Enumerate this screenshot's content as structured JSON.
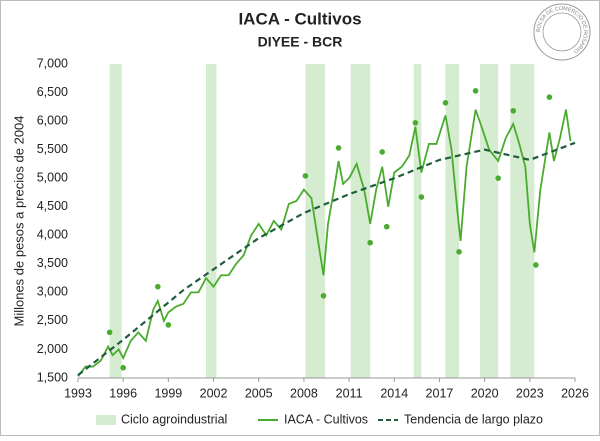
{
  "chart_data": {
    "type": "line",
    "title": "IACA - Cultivos",
    "subtitle": "DIYEE - BCR",
    "logo_text": "BOLSA DE COMERCIO DE ROSARIO",
    "y_label": "Millones de pesos a precios de 2004",
    "xlim": [
      1993,
      2026
    ],
    "xticks": [
      1993,
      1996,
      1999,
      2002,
      2005,
      2008,
      2011,
      2014,
      2017,
      2020,
      2023,
      2026
    ],
    "ylim": [
      1500,
      7000
    ],
    "yticks": [
      {
        "value": 1500,
        "label": "1,500"
      },
      {
        "value": 2000,
        "label": "2,000"
      },
      {
        "value": 2500,
        "label": "2,500"
      },
      {
        "value": 3000,
        "label": "3,000"
      },
      {
        "value": 3500,
        "label": "3,500"
      },
      {
        "value": 4000,
        "label": "4,000"
      },
      {
        "value": 4500,
        "label": "4,500"
      },
      {
        "value": 5000,
        "label": "5,000"
      },
      {
        "value": 5500,
        "label": "5,500"
      },
      {
        "value": 6000,
        "label": "6,000"
      },
      {
        "value": 6500,
        "label": "6,500"
      },
      {
        "value": 7000,
        "label": "7,000"
      }
    ],
    "bands": {
      "name": "Ciclo agroindustrial",
      "color": "#d5ecd0",
      "ranges": [
        [
          1995.1,
          1995.9
        ],
        [
          2001.5,
          2002.2
        ],
        [
          2008.1,
          2009.4
        ],
        [
          2011.1,
          2012.4
        ],
        [
          2015.3,
          2015.8
        ],
        [
          2017.4,
          2018.3
        ],
        [
          2019.7,
          2020.9
        ],
        [
          2021.7,
          2023.3
        ]
      ]
    },
    "series": [
      {
        "name": "IACA - Cultivos",
        "color": "#4aac2f",
        "style": "solid",
        "x": [
          1993.0,
          1993.5,
          1994.0,
          1994.5,
          1995.0,
          1995.3,
          1995.7,
          1996.0,
          1996.5,
          1997.0,
          1997.5,
          1998.0,
          1998.3,
          1998.7,
          1999.0,
          1999.5,
          2000.0,
          2000.5,
          2001.0,
          2001.5,
          2002.0,
          2002.5,
          2003.0,
          2003.5,
          2004.0,
          2004.5,
          2005.0,
          2005.5,
          2006.0,
          2006.5,
          2007.0,
          2007.5,
          2008.0,
          2008.5,
          2009.0,
          2009.3,
          2009.6,
          2010.0,
          2010.3,
          2010.6,
          2011.0,
          2011.5,
          2012.0,
          2012.4,
          2012.8,
          2013.2,
          2013.6,
          2014.0,
          2014.5,
          2015.0,
          2015.4,
          2015.8,
          2016.3,
          2016.8,
          2017.4,
          2017.8,
          2018.2,
          2018.4,
          2018.8,
          2019.4,
          2019.8,
          2020.3,
          2020.9,
          2021.4,
          2021.9,
          2022.3,
          2022.7,
          2023.0,
          2023.3,
          2023.7,
          2024.3,
          2024.6,
          2025.0,
          2025.4,
          2025.7
        ],
        "values": [
          1530,
          1700,
          1700,
          1800,
          2050,
          1900,
          2000,
          1850,
          2150,
          2300,
          2150,
          2700,
          2850,
          2500,
          2650,
          2750,
          2800,
          3000,
          3000,
          3250,
          3100,
          3300,
          3300,
          3500,
          3650,
          4000,
          4200,
          4000,
          4250,
          4100,
          4550,
          4600,
          4800,
          4650,
          3800,
          3300,
          4200,
          4800,
          5300,
          4900,
          5000,
          5250,
          4800,
          4200,
          4800,
          5200,
          4500,
          5100,
          5200,
          5400,
          5900,
          5100,
          5600,
          5600,
          6100,
          5500,
          4400,
          3900,
          5200,
          6200,
          5900,
          5500,
          5300,
          5700,
          5950,
          5600,
          5200,
          4200,
          3700,
          4800,
          5800,
          5300,
          5700,
          6200,
          5650
        ]
      },
      {
        "name": "Tendencia de largo plazo",
        "color": "#1f5e3c",
        "style": "dashed",
        "x": [
          1993,
          1996,
          2000,
          2005,
          2008,
          2011,
          2014,
          2017,
          2020,
          2023,
          2026
        ],
        "values": [
          1550,
          2170,
          3040,
          3950,
          4390,
          4720,
          5000,
          5320,
          5500,
          5320,
          5620
        ]
      }
    ],
    "points": {
      "color": "#4aac2f",
      "x": [
        1995.1,
        1996.0,
        1998.3,
        1999.0,
        2008.1,
        2009.3,
        2010.3,
        2012.4,
        2013.2,
        2013.5,
        2015.4,
        2015.8,
        2017.4,
        2018.3,
        2019.4,
        2020.9,
        2021.9,
        2023.4,
        2024.3
      ],
      "values": [
        2300,
        1680,
        3100,
        2430,
        5040,
        2940,
        5530,
        3870,
        5460,
        4150,
        5970,
        4670,
        6320,
        3710,
        6530,
        5000,
        6180,
        3480,
        6420
      ]
    }
  }
}
